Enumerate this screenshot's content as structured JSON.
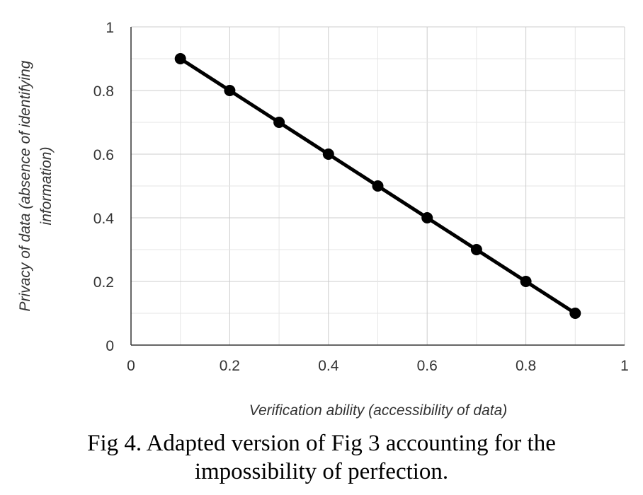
{
  "chart_data": {
    "type": "line",
    "title": "",
    "xlabel": "Verification ability (accessibility of data)",
    "ylabel_lines": [
      "Privacy of data (absence of identifying",
      "information)"
    ],
    "xlim": [
      0,
      1
    ],
    "ylim": [
      0,
      1
    ],
    "x_ticks": [
      "0",
      "0.2",
      "0.4",
      "0.6",
      "0.8",
      "1"
    ],
    "y_ticks": [
      "0",
      "0.2",
      "0.4",
      "0.6",
      "0.8",
      "1"
    ],
    "grid": true,
    "series": [
      {
        "color": "#000000",
        "x": [
          0.1,
          0.2,
          0.3,
          0.4,
          0.5,
          0.6,
          0.7,
          0.8,
          0.9
        ],
        "y": [
          0.9,
          0.8,
          0.7,
          0.6,
          0.5,
          0.4,
          0.3,
          0.2,
          0.1
        ]
      }
    ]
  },
  "caption": {
    "line1": "Fig 4. Adapted version of Fig 3 accounting for the",
    "line2": "impossibility of perfection."
  }
}
